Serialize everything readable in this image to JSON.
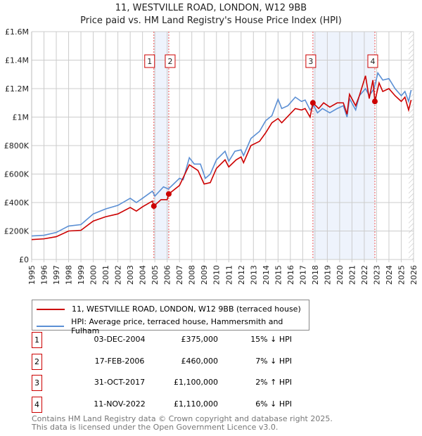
{
  "title": "11, WESTVILLE ROAD, LONDON, W12 9BB",
  "subtitle": "Price paid vs. HM Land Registry's House Price Index (HPI)",
  "colors": {
    "property": "#cc0000",
    "hpi": "#5b8fd4",
    "shade": "#eef3fc"
  },
  "legend": {
    "property": "11, WESTVILLE ROAD, LONDON, W12 9BB (terraced house)",
    "hpi": "HPI: Average price, terraced house, Hammersmith and Fulham"
  },
  "transactions": [
    {
      "num": "1",
      "date": "03-DEC-2004",
      "price": "£375,000",
      "pct": "15% ↓ HPI"
    },
    {
      "num": "2",
      "date": "17-FEB-2006",
      "price": "£460,000",
      "pct": "7% ↓ HPI"
    },
    {
      "num": "3",
      "date": "31-OCT-2017",
      "price": "£1,100,000",
      "pct": "2% ↑ HPI"
    },
    {
      "num": "4",
      "date": "11-NOV-2022",
      "price": "£1,110,000",
      "pct": "6% ↓ HPI"
    }
  ],
  "footer": {
    "line1": "Contains HM Land Registry data © Crown copyright and database right 2025.",
    "line2": "This data is licensed under the Open Government Licence v3.0."
  },
  "chart_data": {
    "type": "line",
    "xlim": [
      1995,
      2026
    ],
    "ylim": [
      0,
      1600000
    ],
    "yticks": [
      {
        "v": 0,
        "label": "£0"
      },
      {
        "v": 200000,
        "label": "£200K"
      },
      {
        "v": 400000,
        "label": "£400K"
      },
      {
        "v": 600000,
        "label": "£600K"
      },
      {
        "v": 800000,
        "label": "£800K"
      },
      {
        "v": 1000000,
        "label": "£1M"
      },
      {
        "v": 1200000,
        "label": "£1.2M"
      },
      {
        "v": 1400000,
        "label": "£1.4M"
      },
      {
        "v": 1600000,
        "label": "£1.6M"
      }
    ],
    "xticks": [
      "1995",
      "1996",
      "1997",
      "1998",
      "1999",
      "2000",
      "2001",
      "2002",
      "2003",
      "2004",
      "2005",
      "2006",
      "2007",
      "2008",
      "2009",
      "2010",
      "2011",
      "2012",
      "2013",
      "2014",
      "2015",
      "2016",
      "2017",
      "2018",
      "2019",
      "2020",
      "2021",
      "2022",
      "2023",
      "2024",
      "2025",
      "2026"
    ],
    "shaded": [
      [
        2004.92,
        2006.13
      ],
      [
        2017.83,
        2022.86
      ]
    ],
    "future_from": 2025.6,
    "sales": [
      {
        "label": "1",
        "x": 2004.92,
        "y": 375000
      },
      {
        "label": "2",
        "x": 2006.13,
        "y": 460000
      },
      {
        "label": "3",
        "x": 2017.83,
        "y": 1100000
      },
      {
        "label": "4",
        "x": 2022.86,
        "y": 1110000
      }
    ],
    "series": [
      {
        "name": "HPI",
        "points": [
          [
            1995,
            165000
          ],
          [
            1996,
            170000
          ],
          [
            1997,
            190000
          ],
          [
            1998,
            235000
          ],
          [
            1999,
            245000
          ],
          [
            2000,
            320000
          ],
          [
            2001,
            355000
          ],
          [
            2002,
            380000
          ],
          [
            2003,
            430000
          ],
          [
            2003.5,
            400000
          ],
          [
            2004,
            430000
          ],
          [
            2004.8,
            480000
          ],
          [
            2005,
            445000
          ],
          [
            2005.7,
            510000
          ],
          [
            2006.1,
            495000
          ],
          [
            2007,
            570000
          ],
          [
            2007.3,
            560000
          ],
          [
            2007.8,
            715000
          ],
          [
            2008.2,
            670000
          ],
          [
            2008.7,
            670000
          ],
          [
            2009.1,
            570000
          ],
          [
            2009.5,
            600000
          ],
          [
            2010,
            700000
          ],
          [
            2010.7,
            760000
          ],
          [
            2011,
            690000
          ],
          [
            2011.5,
            760000
          ],
          [
            2012,
            770000
          ],
          [
            2012.2,
            730000
          ],
          [
            2012.8,
            850000
          ],
          [
            2013.5,
            900000
          ],
          [
            2014,
            975000
          ],
          [
            2014.5,
            1010000
          ],
          [
            2015,
            1125000
          ],
          [
            2015.3,
            1060000
          ],
          [
            2015.8,
            1080000
          ],
          [
            2016.4,
            1140000
          ],
          [
            2016.9,
            1110000
          ],
          [
            2017.2,
            1120000
          ],
          [
            2017.6,
            1050000
          ],
          [
            2017.9,
            1080000
          ],
          [
            2018.2,
            1030000
          ],
          [
            2018.6,
            1060000
          ],
          [
            2019.2,
            1030000
          ],
          [
            2019.8,
            1060000
          ],
          [
            2020.3,
            1080000
          ],
          [
            2020.6,
            1000000
          ],
          [
            2020.8,
            1130000
          ],
          [
            2021.3,
            1050000
          ],
          [
            2021.6,
            1150000
          ],
          [
            2022.1,
            1200000
          ],
          [
            2022.4,
            1150000
          ],
          [
            2022.8,
            1200000
          ],
          [
            2023.1,
            1310000
          ],
          [
            2023.5,
            1260000
          ],
          [
            2024,
            1270000
          ],
          [
            2024.5,
            1200000
          ],
          [
            2025,
            1150000
          ],
          [
            2025.3,
            1180000
          ],
          [
            2025.6,
            1110000
          ],
          [
            2025.8,
            1190000
          ]
        ]
      },
      {
        "name": "Property",
        "points": [
          [
            1995,
            140000
          ],
          [
            1996,
            145000
          ],
          [
            1997,
            160000
          ],
          [
            1998,
            200000
          ],
          [
            1999,
            205000
          ],
          [
            2000,
            270000
          ],
          [
            2001,
            300000
          ],
          [
            2002,
            320000
          ],
          [
            2003,
            365000
          ],
          [
            2003.5,
            340000
          ],
          [
            2004,
            370000
          ],
          [
            2004.8,
            410000
          ],
          [
            2004.92,
            375000
          ],
          [
            2005.5,
            420000
          ],
          [
            2006,
            420000
          ],
          [
            2006.13,
            460000
          ],
          [
            2007,
            520000
          ],
          [
            2007.8,
            665000
          ],
          [
            2008.5,
            625000
          ],
          [
            2009,
            530000
          ],
          [
            2009.5,
            540000
          ],
          [
            2010,
            640000
          ],
          [
            2010.7,
            700000
          ],
          [
            2011,
            650000
          ],
          [
            2011.6,
            700000
          ],
          [
            2012,
            720000
          ],
          [
            2012.2,
            680000
          ],
          [
            2012.8,
            800000
          ],
          [
            2013.5,
            830000
          ],
          [
            2014,
            890000
          ],
          [
            2014.5,
            960000
          ],
          [
            2015,
            990000
          ],
          [
            2015.3,
            960000
          ],
          [
            2016.4,
            1060000
          ],
          [
            2016.9,
            1050000
          ],
          [
            2017.2,
            1060000
          ],
          [
            2017.6,
            1000000
          ],
          [
            2017.83,
            1100000
          ],
          [
            2018.3,
            1060000
          ],
          [
            2018.7,
            1100000
          ],
          [
            2019.2,
            1070000
          ],
          [
            2019.8,
            1100000
          ],
          [
            2020.3,
            1100000
          ],
          [
            2020.6,
            1020000
          ],
          [
            2020.8,
            1160000
          ],
          [
            2021.3,
            1080000
          ],
          [
            2021.6,
            1150000
          ],
          [
            2022.1,
            1290000
          ],
          [
            2022.4,
            1130000
          ],
          [
            2022.7,
            1260000
          ],
          [
            2022.86,
            1110000
          ],
          [
            2023.2,
            1240000
          ],
          [
            2023.5,
            1180000
          ],
          [
            2024,
            1200000
          ],
          [
            2024.5,
            1150000
          ],
          [
            2025,
            1110000
          ],
          [
            2025.3,
            1140000
          ],
          [
            2025.6,
            1050000
          ],
          [
            2025.8,
            1120000
          ]
        ]
      }
    ]
  }
}
